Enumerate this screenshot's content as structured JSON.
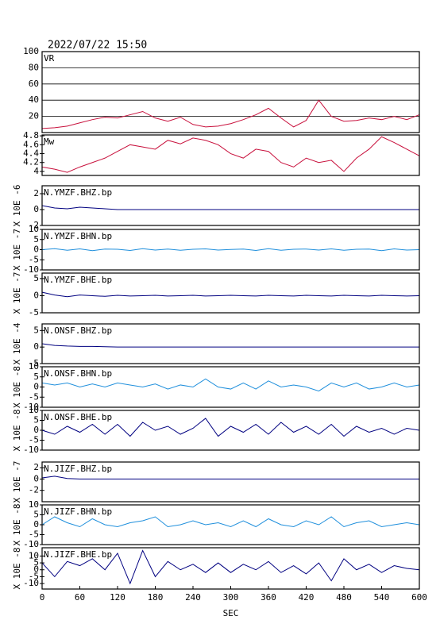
{
  "chart_data": [
    {
      "type": "line",
      "title": "2022/07/22 15:50",
      "label": "VR",
      "grid": true,
      "ylim": [
        0,
        100
      ],
      "yticks": [
        20,
        40,
        60,
        80,
        100
      ],
      "x": [
        0,
        20,
        40,
        60,
        80,
        100,
        120,
        140,
        160,
        180,
        200,
        220,
        240,
        260,
        280,
        300,
        320,
        340,
        360,
        380,
        400,
        420,
        440,
        460,
        480,
        500,
        520,
        540,
        560,
        580,
        600
      ],
      "series": [
        {
          "color": "#c8103c",
          "values": [
            5,
            6,
            8,
            12,
            16,
            19,
            18,
            22,
            26,
            18,
            14,
            19,
            10,
            7,
            8,
            11,
            16,
            22,
            30,
            18,
            7,
            15,
            40,
            20,
            14,
            15,
            18,
            16,
            20,
            16,
            22
          ]
        }
      ]
    },
    {
      "type": "line",
      "label": "Mw",
      "ylim": [
        3.91,
        4.82
      ],
      "yticks": [
        4.0,
        4.2,
        4.4,
        4.6,
        4.8
      ],
      "x": [
        0,
        20,
        40,
        60,
        80,
        100,
        120,
        140,
        160,
        180,
        200,
        220,
        240,
        260,
        280,
        300,
        320,
        340,
        360,
        380,
        400,
        420,
        440,
        460,
        480,
        500,
        520,
        540,
        560,
        580,
        600
      ],
      "series": [
        {
          "color": "#c8103c",
          "values": [
            4.1,
            4.05,
            3.98,
            4.1,
            4.2,
            4.3,
            4.45,
            4.6,
            4.55,
            4.5,
            4.7,
            4.62,
            4.75,
            4.7,
            4.6,
            4.4,
            4.3,
            4.5,
            4.45,
            4.2,
            4.1,
            4.3,
            4.2,
            4.25,
            4.0,
            4.3,
            4.5,
            4.78,
            4.65,
            4.5,
            4.35
          ]
        }
      ]
    },
    {
      "type": "line",
      "label": "N.YMZF.BHZ.bp",
      "y_label": "X 10E -6",
      "ylim": [
        -2,
        3
      ],
      "yticks": [
        -2,
        0,
        2
      ],
      "x": [
        0,
        20,
        40,
        60,
        80,
        100,
        120,
        140,
        160,
        180,
        200,
        220,
        240,
        260,
        280,
        300,
        320,
        340,
        360,
        380,
        400,
        420,
        440,
        460,
        480,
        500,
        520,
        540,
        560,
        580,
        600
      ],
      "series": [
        {
          "color": "#000080",
          "values": [
            0.5,
            0.2,
            0.1,
            0.3,
            0.2,
            0.1,
            0,
            0,
            0,
            0,
            0,
            0,
            0,
            0,
            0,
            0,
            0,
            0,
            0,
            0,
            0,
            0,
            0,
            0,
            0,
            0,
            0,
            0,
            0,
            0,
            0
          ]
        }
      ]
    },
    {
      "type": "line",
      "label": "N.YMZF.BHN.bp",
      "y_label": "X 10E -7",
      "ylim": [
        -10,
        10
      ],
      "yticks": [
        -10,
        -5,
        0,
        5,
        10
      ],
      "x": [
        0,
        20,
        40,
        60,
        80,
        100,
        120,
        140,
        160,
        180,
        200,
        220,
        240,
        260,
        280,
        300,
        320,
        340,
        360,
        380,
        400,
        420,
        440,
        460,
        480,
        500,
        520,
        540,
        560,
        580,
        600
      ],
      "series": [
        {
          "color": "#1f8fdc",
          "values": [
            0,
            0.5,
            -0.3,
            0.4,
            -0.5,
            0.3,
            0.2,
            -0.4,
            0.5,
            -0.2,
            0.3,
            -0.3,
            0.2,
            0.4,
            -0.2,
            0.1,
            0.3,
            -0.4,
            0.5,
            -0.3,
            0.2,
            0.3,
            -0.2,
            0.4,
            -0.3,
            0.2,
            0.3,
            -0.5,
            0.4,
            -0.2,
            0
          ]
        }
      ]
    },
    {
      "type": "line",
      "label": "N.YMZF.BHE.bp",
      "y_label": "X 10E -7",
      "ylim": [
        -5,
        6.6
      ],
      "yticks": [
        -5,
        0,
        5
      ],
      "x": [
        0,
        20,
        40,
        60,
        80,
        100,
        120,
        140,
        160,
        180,
        200,
        220,
        240,
        260,
        280,
        300,
        320,
        340,
        360,
        380,
        400,
        420,
        440,
        460,
        480,
        500,
        520,
        540,
        560,
        580,
        600
      ],
      "series": [
        {
          "color": "#000080",
          "values": [
            1,
            0.2,
            -0.3,
            0.2,
            0,
            -0.2,
            0.1,
            -0.1,
            0,
            0.1,
            -0.1,
            0,
            0.1,
            -0.1,
            0,
            0.1,
            0,
            -0.1,
            0.1,
            0,
            -0.1,
            0.1,
            0,
            -0.1,
            0.1,
            0,
            -0.1,
            0.1,
            0,
            -0.1,
            0
          ]
        }
      ]
    },
    {
      "type": "line",
      "label": "N.ONSF.BHZ.bp",
      "y_label": "X 10E -4",
      "ylim": [
        -5,
        7
      ],
      "yticks": [
        -5,
        0,
        5
      ],
      "x": [
        0,
        20,
        40,
        60,
        80,
        100,
        120,
        140,
        160,
        180,
        200,
        220,
        240,
        260,
        280,
        300,
        320,
        340,
        360,
        380,
        400,
        420,
        440,
        460,
        480,
        500,
        520,
        540,
        560,
        580,
        600
      ],
      "series": [
        {
          "color": "#000080",
          "values": [
            1,
            0.5,
            0.3,
            0.2,
            0.2,
            0.1,
            0,
            0,
            0,
            0,
            0,
            0,
            0,
            0,
            0,
            0,
            0,
            0,
            0,
            0,
            0,
            0,
            0,
            0,
            0,
            0,
            0,
            0,
            0,
            0,
            0
          ]
        }
      ]
    },
    {
      "type": "line",
      "label": "N.ONSF.BHN.bp",
      "y_label": "X 10E -8",
      "ylim": [
        -10,
        10
      ],
      "yticks": [
        -10,
        -5,
        0,
        5,
        10
      ],
      "x": [
        0,
        20,
        40,
        60,
        80,
        100,
        120,
        140,
        160,
        180,
        200,
        220,
        240,
        260,
        280,
        300,
        320,
        340,
        360,
        380,
        400,
        420,
        440,
        460,
        480,
        500,
        520,
        540,
        560,
        580,
        600
      ],
      "series": [
        {
          "color": "#1f8fdc",
          "values": [
            2,
            1,
            2,
            0,
            1.5,
            0,
            2,
            1,
            0,
            1.5,
            -1,
            1,
            0,
            4,
            0,
            -1,
            2,
            -1,
            3,
            0,
            1,
            0,
            -2,
            2,
            0,
            2,
            -1,
            0,
            2,
            0,
            1
          ]
        }
      ]
    },
    {
      "type": "line",
      "label": "N.ONSF.BHE.bp",
      "y_label": "X 10E -8",
      "ylim": [
        -10,
        10
      ],
      "yticks": [
        -10,
        -5,
        0,
        5,
        10
      ],
      "x": [
        0,
        20,
        40,
        60,
        80,
        100,
        120,
        140,
        160,
        180,
        200,
        220,
        240,
        260,
        280,
        300,
        320,
        340,
        360,
        380,
        400,
        420,
        440,
        460,
        480,
        500,
        520,
        540,
        560,
        580,
        600
      ],
      "series": [
        {
          "color": "#000080",
          "values": [
            0,
            -2,
            2,
            -1,
            3,
            -2,
            3,
            -3,
            4,
            0,
            2,
            -2,
            1,
            6,
            -3,
            2,
            -1,
            3,
            -2,
            4,
            -1,
            2,
            -2,
            3,
            -3,
            2,
            -1,
            1,
            -2,
            1,
            0
          ]
        }
      ]
    },
    {
      "type": "line",
      "label": "N.JIZF.BHZ.bp",
      "y_label": "X 10E -7",
      "ylim": [
        -4,
        3
      ],
      "yticks": [
        -2,
        0,
        2
      ],
      "x": [
        0,
        20,
        40,
        60,
        80,
        100,
        120,
        140,
        160,
        180,
        200,
        220,
        240,
        260,
        280,
        300,
        320,
        340,
        360,
        380,
        400,
        420,
        440,
        460,
        480,
        500,
        520,
        540,
        560,
        580,
        600
      ],
      "series": [
        {
          "color": "#000080",
          "values": [
            0.2,
            0.5,
            0.1,
            0,
            0,
            0,
            0,
            0,
            0,
            0,
            0,
            0,
            0,
            0,
            0,
            0,
            0,
            0,
            0,
            0,
            0,
            0,
            0,
            0,
            0,
            0,
            0,
            0,
            0,
            0,
            0
          ]
        }
      ]
    },
    {
      "type": "line",
      "label": "N.JIZF.BHN.bp",
      "y_label": "X 10E -8",
      "ylim": [
        -10,
        10
      ],
      "yticks": [
        -10,
        -5,
        0,
        5,
        10
      ],
      "x": [
        0,
        20,
        40,
        60,
        80,
        100,
        120,
        140,
        160,
        180,
        200,
        220,
        240,
        260,
        280,
        300,
        320,
        340,
        360,
        380,
        400,
        420,
        440,
        460,
        480,
        500,
        520,
        540,
        560,
        580,
        600
      ],
      "series": [
        {
          "color": "#1f8fdc",
          "values": [
            0,
            4,
            1,
            -1,
            3,
            0,
            -1,
            1,
            2,
            4,
            -1,
            0,
            2,
            0,
            1,
            -1,
            2,
            -1,
            3,
            0,
            -1,
            2,
            0,
            4,
            -1,
            1,
            2,
            -1,
            0,
            1,
            0
          ]
        }
      ]
    },
    {
      "type": "line",
      "label": "N.JIZF.BHE.bp",
      "y_label": "X 10E -8",
      "x_label": "SEC",
      "ylim": [
        -14,
        16
      ],
      "yticks": [
        -10,
        -5,
        0,
        5,
        10
      ],
      "xlim": [
        0,
        600
      ],
      "xticks": [
        0,
        60,
        120,
        180,
        240,
        300,
        360,
        420,
        480,
        540,
        600
      ],
      "x": [
        0,
        20,
        40,
        60,
        80,
        100,
        120,
        140,
        160,
        180,
        200,
        220,
        240,
        260,
        280,
        300,
        320,
        340,
        360,
        380,
        400,
        420,
        440,
        460,
        480,
        500,
        520,
        540,
        560,
        580,
        600
      ],
      "series": [
        {
          "color": "#000080",
          "values": [
            5,
            -5,
            6,
            3,
            8,
            0,
            12,
            -10,
            14,
            -5,
            6,
            0,
            4,
            -2,
            5,
            -2,
            4,
            0,
            6,
            -2,
            3,
            -3,
            5,
            -8,
            8,
            0,
            4,
            -2,
            3,
            1,
            0
          ]
        }
      ]
    }
  ]
}
